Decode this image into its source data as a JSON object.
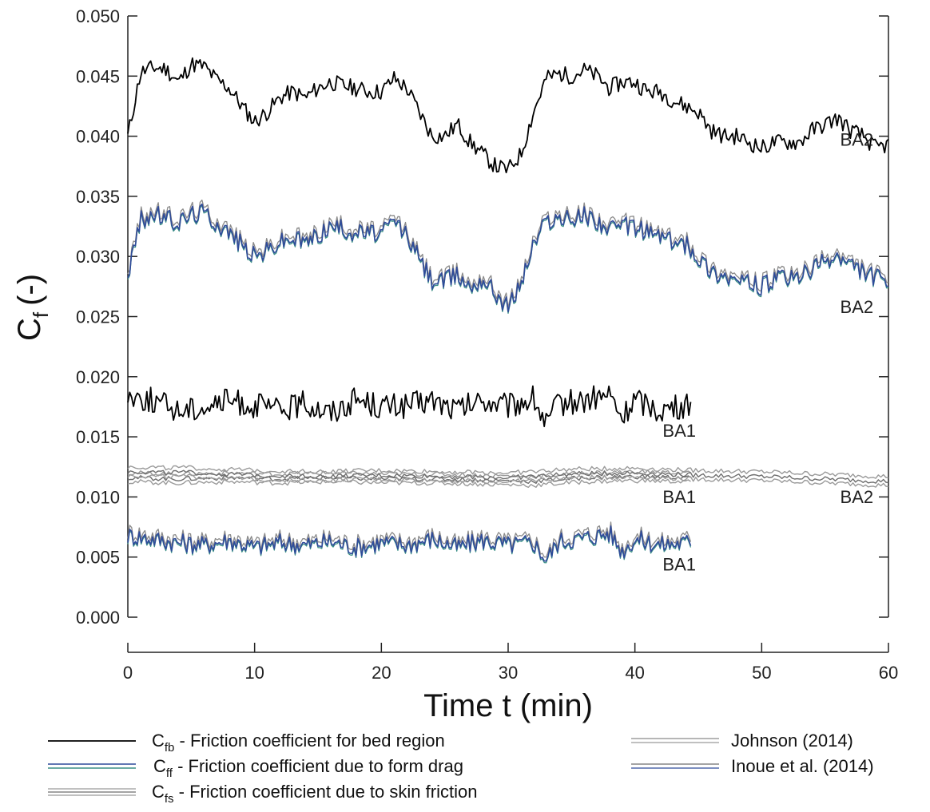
{
  "chart_data": {
    "type": "line",
    "xlabel": "Time t (min)",
    "ylabel_main": "C",
    "ylabel_sub": "f",
    "ylabel_unit": "(-)",
    "xlim": [
      0,
      60
    ],
    "ylim": [
      0.0,
      0.05
    ],
    "xticks": [
      "0",
      "10",
      "20",
      "30",
      "40",
      "50",
      "60"
    ],
    "yticks": [
      "0.000",
      "0.005",
      "0.010",
      "0.015",
      "0.020",
      "0.025",
      "0.030",
      "0.035",
      "0.040",
      "0.045",
      "0.050"
    ],
    "grid": false,
    "colors": {
      "bed": "#000000",
      "form_blue": "#2f4a9a",
      "form_teal": "#3a8f86",
      "skin_a": "#9a9a9a",
      "skin_b": "#6e6e6e",
      "form_johnson": "#8a8a8a"
    },
    "series": [
      {
        "case": "BA2",
        "kind": "bed",
        "x": [
          0,
          1,
          2,
          3,
          4,
          5,
          6,
          7,
          8,
          9,
          10,
          11,
          12,
          13,
          14,
          15,
          16,
          17,
          18,
          19,
          20,
          21,
          22,
          23,
          24,
          25,
          26,
          27,
          28,
          29,
          30,
          31,
          32,
          33,
          34,
          35,
          36,
          37,
          38,
          39,
          40,
          41,
          42,
          43,
          44,
          45,
          46,
          47,
          48,
          49,
          50,
          51,
          52,
          53,
          54,
          55,
          56,
          57,
          58,
          59,
          60
        ],
        "y": [
          0.04,
          0.0453,
          0.0457,
          0.0456,
          0.0445,
          0.046,
          0.0458,
          0.0447,
          0.044,
          0.0425,
          0.0412,
          0.042,
          0.0432,
          0.0437,
          0.0432,
          0.044,
          0.0445,
          0.0442,
          0.044,
          0.0437,
          0.0437,
          0.0448,
          0.044,
          0.042,
          0.04,
          0.04,
          0.041,
          0.0395,
          0.0385,
          0.0375,
          0.0372,
          0.0385,
          0.042,
          0.0448,
          0.0452,
          0.045,
          0.0455,
          0.045,
          0.044,
          0.0445,
          0.0445,
          0.0437,
          0.0437,
          0.043,
          0.0425,
          0.042,
          0.0405,
          0.04,
          0.04,
          0.0395,
          0.039,
          0.0395,
          0.0395,
          0.0395,
          0.0405,
          0.041,
          0.0415,
          0.0405,
          0.04,
          0.039,
          0.0393
        ]
      },
      {
        "case": "BA2",
        "kind": "form",
        "x": [
          0,
          1,
          2,
          3,
          4,
          5,
          6,
          7,
          8,
          9,
          10,
          11,
          12,
          13,
          14,
          15,
          16,
          17,
          18,
          19,
          20,
          21,
          22,
          23,
          24,
          25,
          26,
          27,
          28,
          29,
          30,
          31,
          32,
          33,
          34,
          35,
          36,
          37,
          38,
          39,
          40,
          41,
          42,
          43,
          44,
          45,
          46,
          47,
          48,
          49,
          50,
          51,
          52,
          53,
          54,
          55,
          56,
          57,
          58,
          59,
          60
        ],
        "y": [
          0.0285,
          0.033,
          0.0335,
          0.0332,
          0.0328,
          0.0335,
          0.0337,
          0.0328,
          0.032,
          0.031,
          0.03,
          0.0305,
          0.0312,
          0.0315,
          0.0312,
          0.0318,
          0.0325,
          0.0323,
          0.032,
          0.032,
          0.0318,
          0.033,
          0.0318,
          0.0298,
          0.028,
          0.028,
          0.0285,
          0.0275,
          0.0282,
          0.027,
          0.0258,
          0.0278,
          0.031,
          0.033,
          0.0332,
          0.033,
          0.0335,
          0.033,
          0.0322,
          0.0325,
          0.0325,
          0.032,
          0.0318,
          0.0312,
          0.031,
          0.03,
          0.0288,
          0.0285,
          0.028,
          0.0278,
          0.0275,
          0.028,
          0.0282,
          0.0283,
          0.029,
          0.0295,
          0.03,
          0.0292,
          0.0288,
          0.0283,
          0.0278
        ]
      },
      {
        "case": "BA1",
        "kind": "bed",
        "x": [
          0,
          2,
          4,
          6,
          8,
          10,
          12,
          14,
          16,
          18,
          20,
          22,
          24,
          26,
          28,
          30,
          32,
          33,
          34,
          36,
          38,
          39,
          40,
          42,
          44,
          44.5
        ],
        "y": [
          0.0185,
          0.018,
          0.0172,
          0.0175,
          0.018,
          0.0176,
          0.0172,
          0.0178,
          0.017,
          0.0182,
          0.0175,
          0.0176,
          0.018,
          0.0172,
          0.018,
          0.0175,
          0.0182,
          0.016,
          0.0178,
          0.018,
          0.0185,
          0.0165,
          0.0182,
          0.0172,
          0.0175,
          0.0178
        ]
      },
      {
        "case": "BA1",
        "kind": "skin",
        "x": [
          0,
          4,
          8,
          12,
          16,
          20,
          24,
          28,
          32,
          36,
          40,
          44.5
        ],
        "y": [
          0.0116,
          0.0115,
          0.0116,
          0.0115,
          0.0116,
          0.0115,
          0.0115,
          0.0114,
          0.0113,
          0.0116,
          0.0117,
          0.0116
        ]
      },
      {
        "case": "BA2",
        "kind": "skin",
        "x": [
          0,
          5,
          10,
          15,
          20,
          25,
          30,
          35,
          40,
          45,
          50,
          55,
          60
        ],
        "y": [
          0.0121,
          0.012,
          0.0118,
          0.0117,
          0.0118,
          0.0117,
          0.0116,
          0.0119,
          0.012,
          0.0118,
          0.0117,
          0.0115,
          0.0113
        ]
      },
      {
        "case": "BA1",
        "kind": "form",
        "x": [
          0,
          2,
          4,
          6,
          8,
          10,
          12,
          14,
          16,
          18,
          20,
          22,
          24,
          26,
          28,
          30,
          32,
          33,
          34,
          36,
          38,
          39,
          40,
          42,
          44,
          44.5
        ],
        "y": [
          0.0068,
          0.0065,
          0.0062,
          0.006,
          0.0064,
          0.0058,
          0.0062,
          0.006,
          0.0063,
          0.0058,
          0.0062,
          0.006,
          0.0065,
          0.0058,
          0.0064,
          0.006,
          0.0062,
          0.0048,
          0.0063,
          0.0066,
          0.007,
          0.0055,
          0.0065,
          0.006,
          0.0062,
          0.0064
        ]
      }
    ],
    "annotations": [
      {
        "text": "BA2",
        "x": 57.5,
        "y": 0.0392
      },
      {
        "text": "BA2",
        "x": 57.5,
        "y": 0.0253
      },
      {
        "text": "BA1",
        "x": 43.5,
        "y": 0.015
      },
      {
        "text": "BA1",
        "x": 43.5,
        "y": 0.0095
      },
      {
        "text": "BA2",
        "x": 57.5,
        "y": 0.0095
      },
      {
        "text": "BA1",
        "x": 43.5,
        "y": 0.0039
      }
    ],
    "legend": {
      "placement": "bottom",
      "entries": [
        {
          "sym": "C",
          "sub": "fb",
          "text": " - Friction coefficient for bed region",
          "style": "bed"
        },
        {
          "sym": "C",
          "sub": "ff",
          "text": " - Friction coefficient due to form drag",
          "style": "form"
        },
        {
          "sym": "C",
          "sub": "fs",
          "text": " - Friction coefficient due to skin friction",
          "style": "skin"
        },
        {
          "text": "Johnson (2014)",
          "style": "johnson"
        },
        {
          "text": "Inoue et al. (2014)",
          "style": "inoue"
        }
      ]
    }
  }
}
